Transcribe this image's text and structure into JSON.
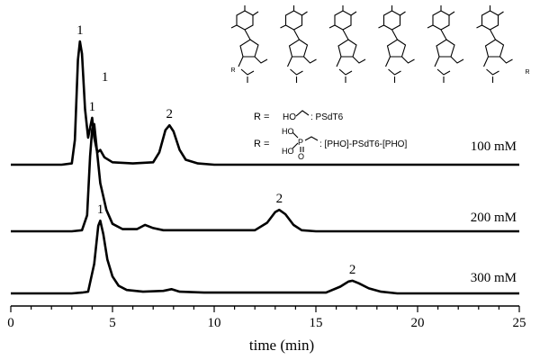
{
  "chart_data": {
    "type": "line",
    "xlabel": "time (min)",
    "ylabel": "",
    "xlim": [
      0,
      25
    ],
    "xticks": [
      0,
      5,
      10,
      15,
      20,
      25
    ],
    "grid": false,
    "legend": "none",
    "line_color": "#000000",
    "series": [
      {
        "name": "100 mM",
        "peaks": [
          {
            "label": "1",
            "time": 3.4
          },
          {
            "label": "1",
            "time": 4.0
          },
          {
            "label": "2",
            "time": 7.8
          }
        ],
        "points": [
          [
            0,
            0
          ],
          [
            2.5,
            0
          ],
          [
            3.0,
            0.01
          ],
          [
            3.15,
            0.2
          ],
          [
            3.3,
            0.85
          ],
          [
            3.4,
            1.0
          ],
          [
            3.5,
            0.9
          ],
          [
            3.65,
            0.45
          ],
          [
            3.8,
            0.22
          ],
          [
            3.9,
            0.3
          ],
          [
            4.0,
            0.38
          ],
          [
            4.1,
            0.22
          ],
          [
            4.25,
            0.1
          ],
          [
            4.4,
            0.12
          ],
          [
            4.6,
            0.06
          ],
          [
            5.0,
            0.02
          ],
          [
            6.0,
            0.01
          ],
          [
            7.0,
            0.02
          ],
          [
            7.3,
            0.1
          ],
          [
            7.6,
            0.28
          ],
          [
            7.8,
            0.32
          ],
          [
            8.0,
            0.27
          ],
          [
            8.3,
            0.12
          ],
          [
            8.6,
            0.04
          ],
          [
            9.2,
            0.01
          ],
          [
            10,
            0
          ],
          [
            25,
            0
          ]
        ]
      },
      {
        "name": "200 mM",
        "peaks": [
          {
            "label": "1",
            "time": 4.1
          },
          {
            "label": "2",
            "time": 13.2
          }
        ],
        "points": [
          [
            0,
            0
          ],
          [
            3.0,
            0
          ],
          [
            3.5,
            0.01
          ],
          [
            3.75,
            0.15
          ],
          [
            3.9,
            0.7
          ],
          [
            4.0,
            0.95
          ],
          [
            4.1,
            1.0
          ],
          [
            4.2,
            0.82
          ],
          [
            4.4,
            0.45
          ],
          [
            4.7,
            0.2
          ],
          [
            5.0,
            0.07
          ],
          [
            5.5,
            0.02
          ],
          [
            6.2,
            0.02
          ],
          [
            6.6,
            0.06
          ],
          [
            7.0,
            0.03
          ],
          [
            7.5,
            0.01
          ],
          [
            12.0,
            0.01
          ],
          [
            12.6,
            0.08
          ],
          [
            13.0,
            0.18
          ],
          [
            13.2,
            0.2
          ],
          [
            13.5,
            0.16
          ],
          [
            13.9,
            0.06
          ],
          [
            14.3,
            0.01
          ],
          [
            15,
            0
          ],
          [
            25,
            0
          ]
        ]
      },
      {
        "name": "300 mM",
        "peaks": [
          {
            "label": "1",
            "time": 4.4
          },
          {
            "label": "2",
            "time": 16.8
          }
        ],
        "points": [
          [
            0,
            0
          ],
          [
            3.0,
            0
          ],
          [
            3.5,
            0.01
          ],
          [
            3.8,
            0.02
          ],
          [
            4.1,
            0.35
          ],
          [
            4.3,
            0.8
          ],
          [
            4.4,
            0.86
          ],
          [
            4.55,
            0.7
          ],
          [
            4.75,
            0.4
          ],
          [
            5.0,
            0.2
          ],
          [
            5.3,
            0.09
          ],
          [
            5.7,
            0.04
          ],
          [
            6.5,
            0.02
          ],
          [
            7.5,
            0.03
          ],
          [
            7.9,
            0.05
          ],
          [
            8.3,
            0.02
          ],
          [
            9.5,
            0.01
          ],
          [
            15.5,
            0.01
          ],
          [
            16.2,
            0.08
          ],
          [
            16.6,
            0.14
          ],
          [
            16.8,
            0.15
          ],
          [
            17.1,
            0.12
          ],
          [
            17.6,
            0.06
          ],
          [
            18.2,
            0.02
          ],
          [
            19,
            0
          ],
          [
            25,
            0
          ]
        ]
      }
    ]
  },
  "structure": {
    "r_equals": "R =",
    "def1_group": "HO",
    "def1_name": ": PSdT6",
    "def2_ho_top": "HO",
    "def2_ho_bottom": "HO",
    "def2_p": "P",
    "def2_o": "O",
    "def2_name": ": [PHO]-PSdT6-[PHO]",
    "atom_r_left": "R",
    "atom_r_right": "R"
  }
}
